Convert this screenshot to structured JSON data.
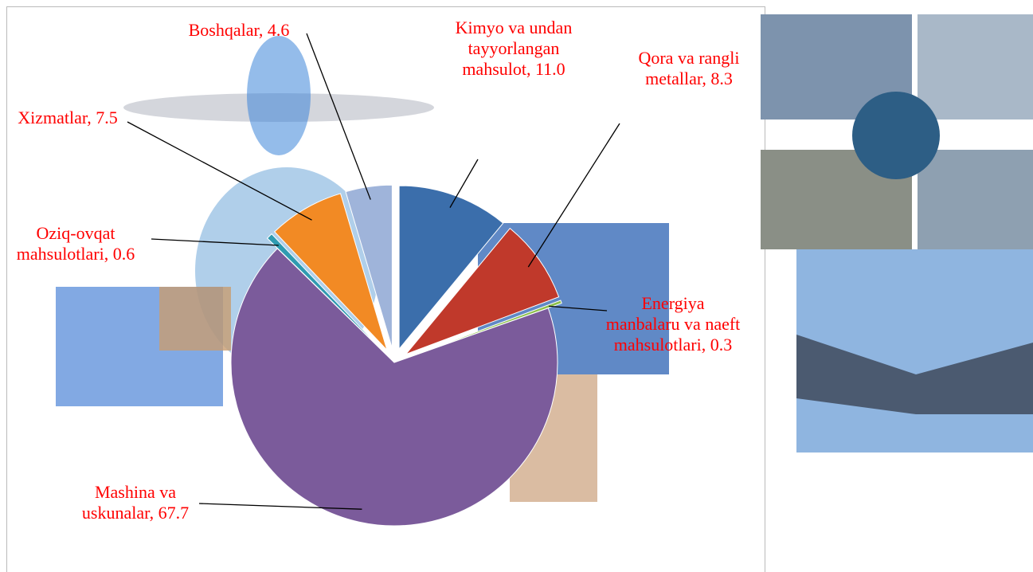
{
  "chart_data": {
    "type": "pie",
    "categories": [
      "Kimyo va undan tayyorlangan mahsulot,",
      "Qora va rangli metallar,",
      "Energiya manbalaru va naeft mahsulotlari,",
      "Mashina va uskunalar,",
      "Oziq-ovqat mahsulotlari,",
      "Xizmatlar,",
      "Boshqalar,"
    ],
    "values": [
      11.0,
      8.3,
      0.3,
      67.7,
      0.6,
      7.5,
      4.6
    ],
    "value_labels": [
      "11.0",
      "8.3",
      "0.3",
      "67.7",
      "0.6",
      "7.5",
      "4.6"
    ],
    "colors": [
      "#3b6eab",
      "#c0392b",
      "#8cc04b",
      "#7b5b9b",
      "#2f9bb1",
      "#f28a24",
      "#9fb4da"
    ]
  }
}
